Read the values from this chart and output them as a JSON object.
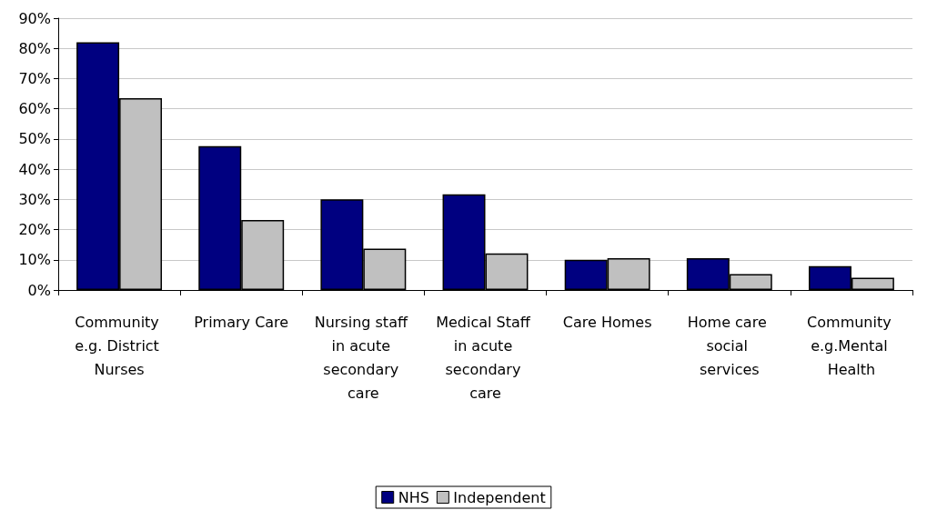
{
  "chart_data": {
    "type": "bar",
    "categories": [
      "Community e.g. District Nurses",
      "Primary Care",
      "Nursing staff in acute secondary care",
      "Medical Staff in acute secondary care",
      "Care Homes",
      "Home care social services",
      "Community e.g.Mental Health"
    ],
    "series": [
      {
        "name": "NHS",
        "color": "#000080",
        "values": [
          82,
          47.6,
          30,
          31.7,
          10,
          10.5,
          7.9
        ]
      },
      {
        "name": "Independent",
        "color": "#c0c0c0",
        "values": [
          63.5,
          23.2,
          13.7,
          12.1,
          10.5,
          5.3,
          4.1
        ]
      }
    ],
    "ylim": [
      0,
      90
    ],
    "yticks": [
      {
        "value": 0,
        "label": "0%"
      },
      {
        "value": 10,
        "label": "10%"
      },
      {
        "value": 20,
        "label": "20%"
      },
      {
        "value": 30,
        "label": "30%"
      },
      {
        "value": 40,
        "label": "40%"
      },
      {
        "value": 50,
        "label": "50%"
      },
      {
        "value": 60,
        "label": "60%"
      },
      {
        "value": 70,
        "label": "70%"
      },
      {
        "value": 80,
        "label": "80%"
      },
      {
        "value": 90,
        "label": "90%"
      }
    ],
    "grid": "y",
    "legend": "bottom"
  }
}
